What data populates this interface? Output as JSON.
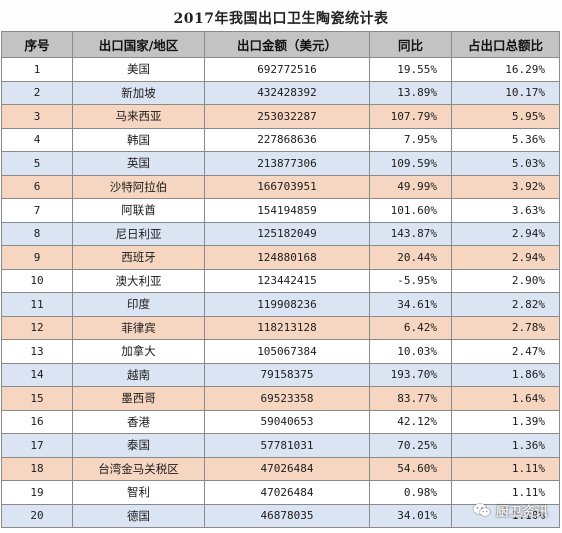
{
  "title": "2017年我国出口卫生陶瓷统计表",
  "headers": {
    "rank": "序号",
    "country": "出口国家/地区",
    "amount": "出口金额（美元）",
    "yoy": "同比",
    "share": "占出口总额比"
  },
  "rows": [
    {
      "rank": "1",
      "country": "美国",
      "amount": "692772516",
      "yoy": "19.55%",
      "share": "16.29%"
    },
    {
      "rank": "2",
      "country": "新加坡",
      "amount": "432428392",
      "yoy": "13.89%",
      "share": "10.17%"
    },
    {
      "rank": "3",
      "country": "马来西亚",
      "amount": "253032287",
      "yoy": "107.79%",
      "share": "5.95%"
    },
    {
      "rank": "4",
      "country": "韩国",
      "amount": "227868636",
      "yoy": "7.95%",
      "share": "5.36%"
    },
    {
      "rank": "5",
      "country": "英国",
      "amount": "213877306",
      "yoy": "109.59%",
      "share": "5.03%"
    },
    {
      "rank": "6",
      "country": "沙特阿拉伯",
      "amount": "166703951",
      "yoy": "49.99%",
      "share": "3.92%"
    },
    {
      "rank": "7",
      "country": "阿联酋",
      "amount": "154194859",
      "yoy": "101.60%",
      "share": "3.63%"
    },
    {
      "rank": "8",
      "country": "尼日利亚",
      "amount": "125182049",
      "yoy": "143.87%",
      "share": "2.94%"
    },
    {
      "rank": "9",
      "country": "西班牙",
      "amount": "124880168",
      "yoy": "20.44%",
      "share": "2.94%"
    },
    {
      "rank": "10",
      "country": "澳大利亚",
      "amount": "123442415",
      "yoy": "-5.95%",
      "share": "2.90%"
    },
    {
      "rank": "11",
      "country": "印度",
      "amount": "119908236",
      "yoy": "34.61%",
      "share": "2.82%"
    },
    {
      "rank": "12",
      "country": "菲律宾",
      "amount": "118213128",
      "yoy": "6.42%",
      "share": "2.78%"
    },
    {
      "rank": "13",
      "country": "加拿大",
      "amount": "105067384",
      "yoy": "10.03%",
      "share": "2.47%"
    },
    {
      "rank": "14",
      "country": "越南",
      "amount": "79158375",
      "yoy": "193.70%",
      "share": "1.86%"
    },
    {
      "rank": "15",
      "country": "墨西哥",
      "amount": "69523358",
      "yoy": "83.77%",
      "share": "1.64%"
    },
    {
      "rank": "16",
      "country": "香港",
      "amount": "59040653",
      "yoy": "42.12%",
      "share": "1.39%"
    },
    {
      "rank": "17",
      "country": "泰国",
      "amount": "57781031",
      "yoy": "70.25%",
      "share": "1.36%"
    },
    {
      "rank": "18",
      "country": "台湾金马关税区",
      "amount": "47026484",
      "yoy": "54.60%",
      "share": "1.11%"
    },
    {
      "rank": "19",
      "country": "智利",
      "amount": "47026484",
      "yoy": "0.98%",
      "share": "1.11%"
    },
    {
      "rank": "20",
      "country": "德国",
      "amount": "46878035",
      "yoy": "34.01%",
      "share": "1.10%"
    }
  ],
  "row_styles": [
    "white",
    "even",
    "orange",
    "white",
    "even",
    "orange",
    "white",
    "even",
    "orange",
    "white",
    "even",
    "orange",
    "white",
    "even",
    "orange",
    "white",
    "even",
    "orange",
    "white",
    "even"
  ],
  "watermark": {
    "icon": "wechat-icon",
    "text": "厨卫资讯"
  },
  "colors": {
    "header_bg": "#c3c3c3",
    "row_blue": "#dbe4f3",
    "row_orange": "#f6d6c1",
    "row_white": "#ffffff"
  }
}
